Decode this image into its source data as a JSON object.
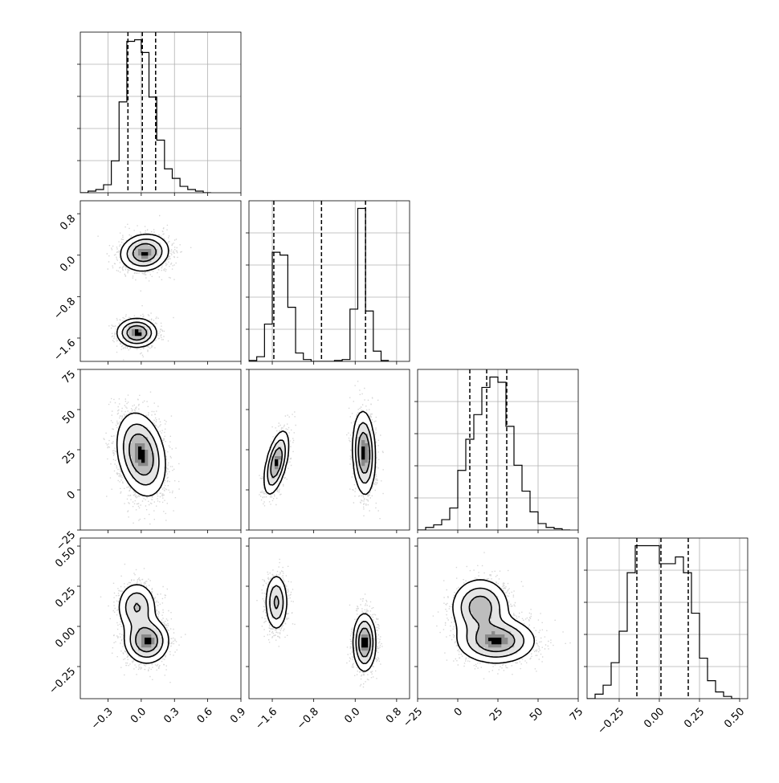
{
  "chart_data": {
    "type": "corner",
    "parameters": [
      {
        "range": [
          -0.55,
          0.9
        ],
        "ticks": [
          -0.3,
          0.0,
          0.3,
          0.6,
          0.9
        ],
        "tick_labels": [
          "−0.3",
          "0.0",
          "0.3",
          "0.6",
          "0.9"
        ]
      },
      {
        "range": [
          -2.05,
          1.05
        ],
        "ticks": [
          -1.6,
          -0.8,
          0.0,
          0.8
        ],
        "tick_labels": [
          "−1.6",
          "−0.8",
          "0.0",
          "0.8"
        ]
      },
      {
        "range": [
          -25,
          75
        ],
        "ticks": [
          -25,
          0,
          25,
          50,
          75
        ],
        "tick_labels": [
          "−25",
          "0",
          "25",
          "50",
          "75"
        ]
      },
      {
        "range": [
          -0.45,
          0.55
        ],
        "ticks": [
          -0.25,
          0.0,
          0.25,
          0.5
        ],
        "tick_labels": [
          "−0.25",
          "0.00",
          "0.25",
          "0.50"
        ]
      }
    ],
    "histograms": [
      {
        "bin_edges": [
          -0.55,
          -0.48,
          -0.41,
          -0.34,
          -0.27,
          -0.2,
          -0.13,
          -0.06,
          0.0,
          0.07,
          0.14,
          0.21,
          0.28,
          0.35,
          0.42,
          0.49,
          0.56,
          0.63
        ],
        "counts": [
          0,
          1,
          2,
          5,
          20,
          57,
          95,
          96,
          88,
          60,
          33,
          15,
          9,
          4,
          2,
          1,
          0
        ],
        "quantiles": [
          -0.12,
          0.01,
          0.13
        ]
      },
      {
        "bin_edges": [
          -2.05,
          -1.9,
          -1.75,
          -1.6,
          -1.45,
          -1.3,
          -1.15,
          -1.0,
          -0.85,
          -0.7,
          -0.55,
          -0.4,
          -0.25,
          -0.1,
          0.05,
          0.2,
          0.35,
          0.5,
          0.65
        ],
        "counts": [
          1,
          5,
          40,
          117,
          114,
          58,
          9,
          2,
          0,
          0,
          0,
          1,
          2,
          56,
          164,
          54,
          11,
          1
        ],
        "quantiles": [
          -1.57,
          -0.65,
          0.2
        ]
      },
      {
        "bin_edges": [
          -25,
          -20,
          -15,
          -10,
          -5,
          0,
          5,
          10,
          15,
          20,
          25,
          30,
          35,
          40,
          45,
          50,
          55,
          60,
          65,
          70
        ],
        "counts": [
          0,
          2,
          4,
          8,
          17,
          46,
          70,
          89,
          110,
          118,
          114,
          80,
          50,
          30,
          14,
          5,
          2,
          1,
          0
        ],
        "quantiles": [
          7.5,
          18.0,
          30.5
        ]
      },
      {
        "bin_edges": [
          -0.45,
          -0.4,
          -0.35,
          -0.3,
          -0.25,
          -0.2,
          -0.15,
          -0.1,
          -0.05,
          0.0,
          0.05,
          0.1,
          0.15,
          0.2,
          0.25,
          0.3,
          0.35,
          0.4,
          0.45,
          0.5
        ],
        "counts": [
          0,
          2,
          6,
          16,
          30,
          56,
          68,
          68,
          68,
          60,
          60,
          63,
          56,
          38,
          18,
          8,
          3,
          1,
          0
        ],
        "quantiles": [
          -0.14,
          0.01,
          0.18
        ]
      }
    ],
    "pairs": [
      {
        "row": 1,
        "col": 0,
        "clusters": [
          {
            "cx": 0.03,
            "cy": 0.05,
            "sx": 0.11,
            "sy": 0.18,
            "rho": 0.1,
            "w": 0.6
          },
          {
            "cx": -0.04,
            "cy": -1.5,
            "sx": 0.09,
            "sy": 0.14,
            "rho": 0.0,
            "w": 0.4
          }
        ]
      },
      {
        "row": 2,
        "col": 0,
        "clusters": [
          {
            "cx": 0.0,
            "cy": 22,
            "sx": 0.11,
            "sy": 13,
            "rho": -0.25,
            "w": 1.0
          }
        ]
      },
      {
        "row": 2,
        "col": 1,
        "clusters": [
          {
            "cx": -1.52,
            "cy": 17,
            "sx": 0.12,
            "sy": 10,
            "rho": 0.55,
            "w": 0.4
          },
          {
            "cx": 0.17,
            "cy": 23,
            "sx": 0.11,
            "sy": 13,
            "rho": -0.1,
            "w": 0.6
          }
        ]
      },
      {
        "row": 3,
        "col": 0,
        "clusters": [
          {
            "cx": -0.04,
            "cy": 0.12,
            "sx": 0.09,
            "sy": 0.08,
            "rho": 0.0,
            "w": 0.4
          },
          {
            "cx": 0.05,
            "cy": -0.09,
            "sx": 0.1,
            "sy": 0.07,
            "rho": 0.0,
            "w": 0.6
          }
        ]
      },
      {
        "row": 3,
        "col": 1,
        "clusters": [
          {
            "cx": -1.52,
            "cy": 0.15,
            "sx": 0.11,
            "sy": 0.09,
            "rho": 0.0,
            "w": 0.4
          },
          {
            "cx": 0.18,
            "cy": -0.1,
            "sx": 0.11,
            "sy": 0.09,
            "rho": 0.0,
            "w": 0.6
          }
        ]
      },
      {
        "row": 3,
        "col": 2,
        "clusters": [
          {
            "cx": 14,
            "cy": 0.12,
            "sx": 9,
            "sy": 0.09,
            "rho": 0.0,
            "w": 0.45
          },
          {
            "cx": 24,
            "cy": -0.09,
            "sx": 12,
            "sy": 0.07,
            "rho": 0.0,
            "w": 0.55
          }
        ]
      }
    ],
    "grid": true,
    "quantile_line_style": "dashed",
    "title": "",
    "xlabel": "",
    "ylabel": ""
  }
}
